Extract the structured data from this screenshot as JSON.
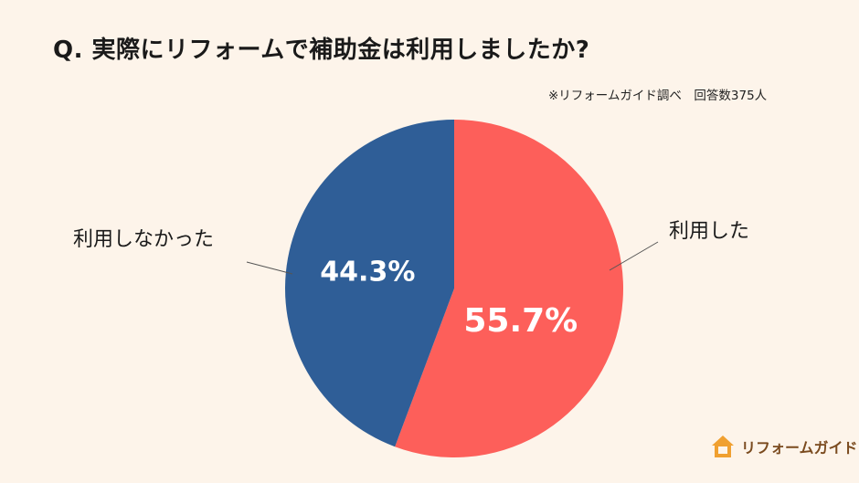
{
  "title": "Q.  実際にリフォームで補助金は利用しましたか?",
  "note": "※リフォームガイド調べ　回答数375人",
  "chart_data": {
    "type": "pie",
    "slices": [
      {
        "label": "利用した",
        "value": 55.7,
        "value_text": "55.7%",
        "color": "#fd5f5a"
      },
      {
        "label": "利用しなかった",
        "value": 44.3,
        "value_text": "44.3%",
        "color": "#2f5e97"
      }
    ],
    "start_angle": "12 o'clock",
    "direction": "clockwise"
  },
  "logo": {
    "text": "リフォームガイド",
    "icon": "house-icon",
    "color": "#f0a030"
  }
}
